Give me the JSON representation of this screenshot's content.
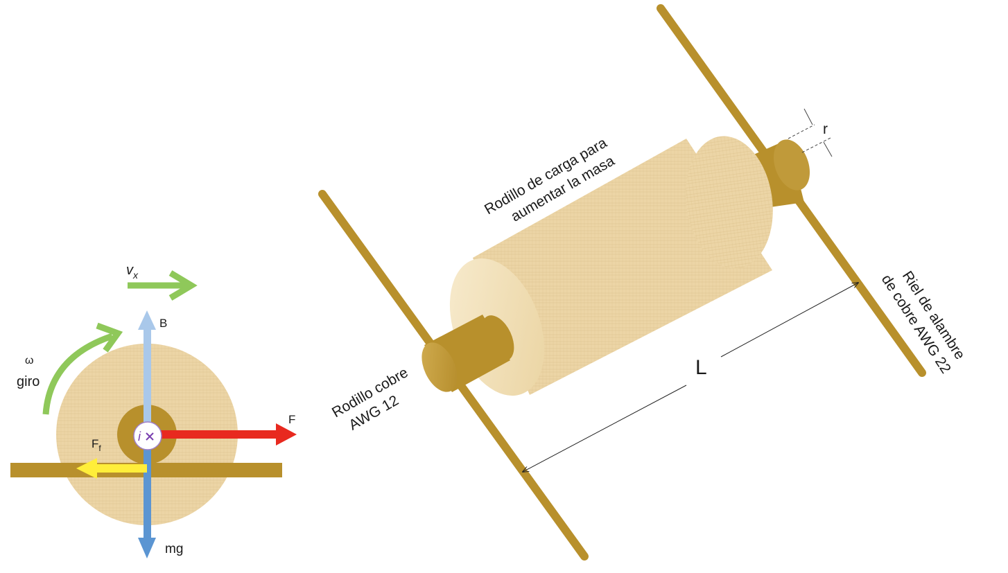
{
  "left_view": {
    "velocity_label": "v",
    "velocity_sub": "x",
    "omega_symbol": "ω",
    "rotation_label": "giro",
    "magnetic_field_label": "B",
    "current_label": "i",
    "force_label": "F",
    "friction_label": "F",
    "friction_sub": "f",
    "weight_label": "mg"
  },
  "right_view": {
    "load_roller_label_line1": "Rodillo de carga para",
    "load_roller_label_line2": "aumentar la masa",
    "radius_label": "r",
    "length_label": "L",
    "copper_roller_label_line1": "Rodillo cobre",
    "copper_roller_label_line2": "AWG 12",
    "rail_label_line1": "Riel de alambre",
    "rail_label_line2": "de cobre AWG 22"
  },
  "colors": {
    "copper": "#b8902c",
    "wood": "#ecd5a6",
    "wood_end": "#f6e8c8",
    "velocity_arrow": "#8fc85a",
    "field_arrow": "#a9c8ea",
    "weight_arrow": "#5b95d2",
    "force_arrow": "#e8291f",
    "friction_arrow": "#ffee3a",
    "current_marker": "#7a3fb0"
  }
}
